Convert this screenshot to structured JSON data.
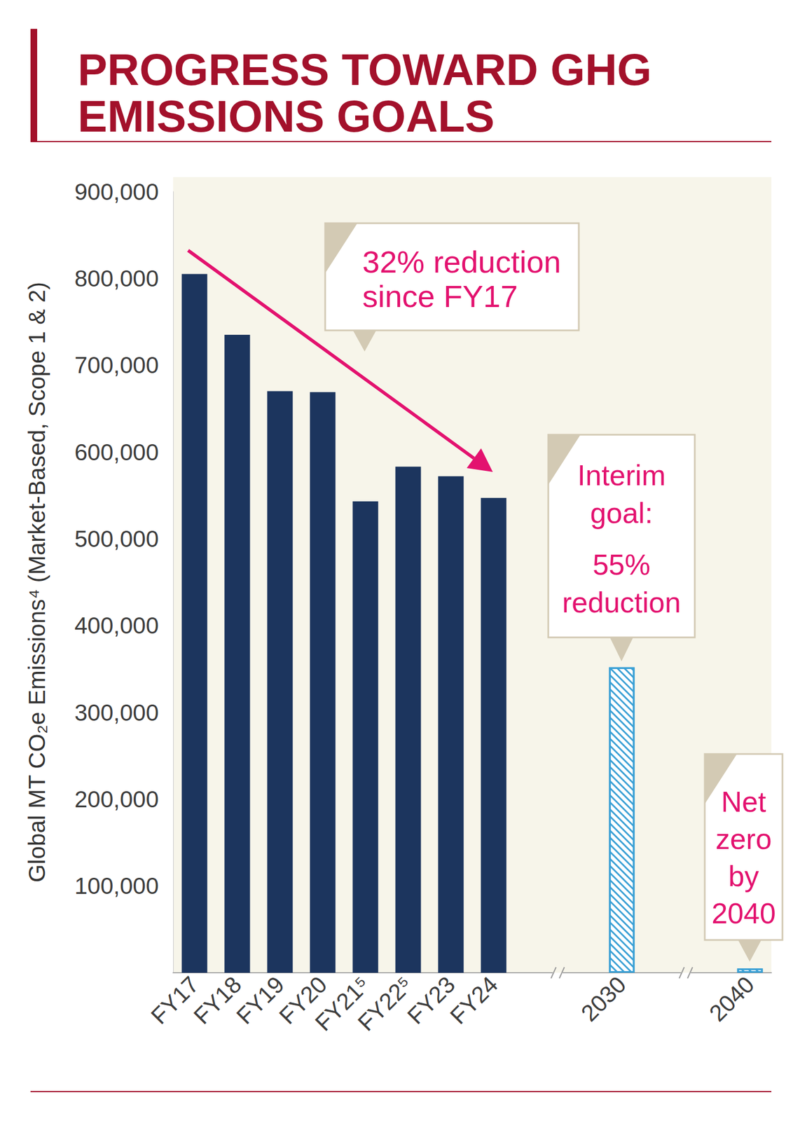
{
  "chart_data": {
    "type": "bar",
    "title": "PROGRESS TOWARD GHG EMISSIONS GOALS",
    "y_label": "Global MT CO₂e Emissions⁴ (Market-Based, Scope 1 & 2)",
    "categories": [
      "FY17",
      "FY18",
      "FY19",
      "FY20",
      "FY21⁵",
      "FY22⁵",
      "FY23",
      "FY24",
      null,
      null,
      "2030",
      null,
      null,
      "2040"
    ],
    "series": [
      {
        "color": "#1c355e",
        "values": [
          805000,
          735000,
          670000,
          669000,
          543000,
          583000,
          572000,
          547000,
          null,
          null,
          null,
          null,
          null,
          null
        ]
      },
      {
        "color": "#3aa0d5",
        "values": [
          null,
          null,
          null,
          null,
          null,
          null,
          null,
          null,
          null,
          null,
          352000,
          null,
          null,
          5000
        ]
      }
    ],
    "ylim": [
      0,
      900000
    ],
    "yticks": [
      {
        "value": 100000,
        "label": "100,000"
      },
      {
        "value": 200000,
        "label": "200,000"
      },
      {
        "value": 300000,
        "label": "300,000"
      },
      {
        "value": 400000,
        "label": "400,000"
      },
      {
        "value": 500000,
        "label": "500,000"
      },
      {
        "value": 600000,
        "label": "600,000"
      },
      {
        "value": 700000,
        "label": "700,000"
      },
      {
        "value": 800000,
        "label": "800,000"
      },
      {
        "value": 900000,
        "label": "900,000"
      }
    ],
    "grid": false,
    "annotations": [
      "32% reduction since FY17",
      "Interim goal:",
      "55% reduction",
      "Net zero by 2040"
    ]
  }
}
